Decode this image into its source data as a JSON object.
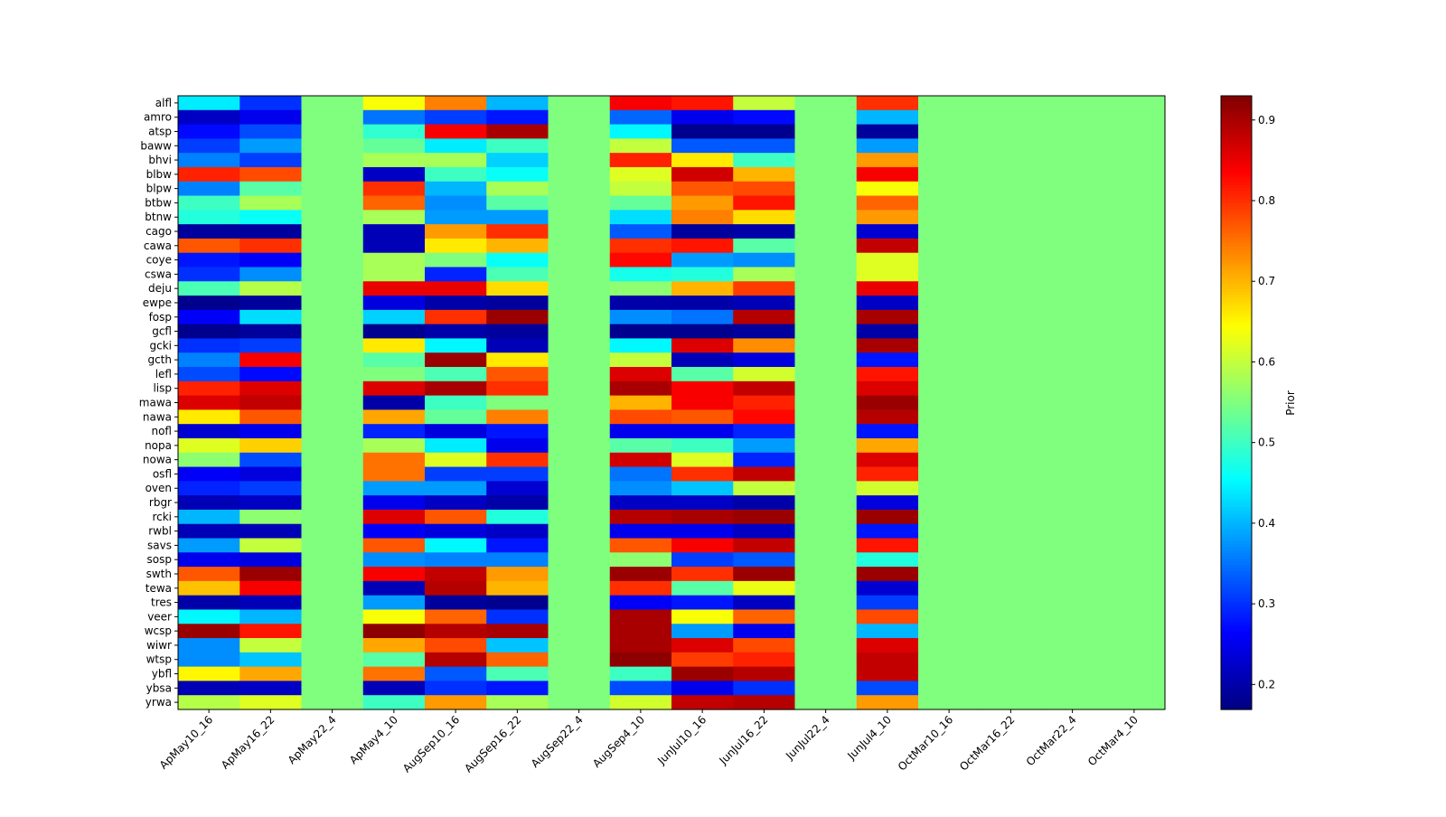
{
  "chart_data": {
    "type": "heatmap",
    "title": "",
    "xlabel": "",
    "ylabel": "",
    "colormap": "jet",
    "colorbar": {
      "label": "Prior",
      "range": [
        0.169,
        0.93
      ],
      "ticks": [
        "0.2",
        "0.3",
        "0.4",
        "0.5",
        "0.6",
        "0.7",
        "0.8",
        "0.9"
      ]
    },
    "columns": [
      "ApMay10_16",
      "ApMay16_22",
      "ApMay22_4",
      "ApMay4_10",
      "AugSep10_16",
      "AugSep16_22",
      "AugSep22_4",
      "AugSep4_10",
      "JunJul10_16",
      "JunJul16_22",
      "JunJul22_4",
      "JunJul4_10",
      "OctMar10_16",
      "OctMar16_22",
      "OctMar22_4",
      "OctMar4_10"
    ],
    "rows": [
      "alfl",
      "amro",
      "atsp",
      "baww",
      "bhvi",
      "blbw",
      "blpw",
      "btbw",
      "btnw",
      "cago",
      "cawa",
      "coye",
      "cswa",
      "deju",
      "ewpe",
      "fosp",
      "gcfl",
      "gcki",
      "gcth",
      "lefl",
      "lisp",
      "mawa",
      "nawa",
      "nofl",
      "nopa",
      "nowa",
      "osfl",
      "oven",
      "rbgr",
      "rcki",
      "rwbl",
      "savs",
      "sosp",
      "swth",
      "tewa",
      "tres",
      "veer",
      "wcsp",
      "wiwr",
      "wtsp",
      "ybfl",
      "ybsa",
      "yrwa"
    ],
    "constant_value": 0.55,
    "constant_columns": [
      "ApMay22_4",
      "AugSep22_4",
      "JunJul22_4",
      "OctMar10_16",
      "OctMar16_22",
      "OctMar22_4",
      "OctMar4_10"
    ],
    "varying_columns": [
      "ApMay10_16",
      "ApMay16_22",
      "ApMay4_10",
      "AugSep10_16",
      "AugSep16_22",
      "AugSep4_10",
      "JunJul10_16",
      "JunJul16_22",
      "JunJul4_10"
    ],
    "values": [
      [
        0.44,
        0.3,
        0.64,
        0.74,
        0.4,
        0.84,
        0.82,
        0.6,
        0.8
      ],
      [
        0.22,
        0.25,
        0.35,
        0.31,
        0.28,
        0.34,
        0.25,
        0.27,
        0.4
      ],
      [
        0.27,
        0.32,
        0.49,
        0.84,
        0.9,
        0.45,
        0.18,
        0.18,
        0.19
      ],
      [
        0.31,
        0.38,
        0.53,
        0.44,
        0.5,
        0.6,
        0.33,
        0.33,
        0.38
      ],
      [
        0.36,
        0.31,
        0.58,
        0.58,
        0.42,
        0.81,
        0.66,
        0.5,
        0.72
      ],
      [
        0.81,
        0.78,
        0.22,
        0.5,
        0.46,
        0.62,
        0.87,
        0.7,
        0.84
      ],
      [
        0.36,
        0.52,
        0.8,
        0.4,
        0.58,
        0.6,
        0.77,
        0.78,
        0.64
      ],
      [
        0.5,
        0.58,
        0.76,
        0.37,
        0.52,
        0.53,
        0.72,
        0.82,
        0.76
      ],
      [
        0.48,
        0.46,
        0.58,
        0.38,
        0.38,
        0.43,
        0.74,
        0.67,
        0.72
      ],
      [
        0.19,
        0.19,
        0.21,
        0.72,
        0.8,
        0.33,
        0.19,
        0.2,
        0.23
      ],
      [
        0.77,
        0.8,
        0.21,
        0.66,
        0.7,
        0.8,
        0.82,
        0.52,
        0.88
      ],
      [
        0.28,
        0.26,
        0.58,
        0.55,
        0.46,
        0.83,
        0.38,
        0.37,
        0.62
      ],
      [
        0.3,
        0.37,
        0.58,
        0.29,
        0.51,
        0.47,
        0.48,
        0.58,
        0.62
      ],
      [
        0.51,
        0.59,
        0.85,
        0.85,
        0.67,
        0.56,
        0.7,
        0.79,
        0.85
      ],
      [
        0.18,
        0.19,
        0.24,
        0.2,
        0.19,
        0.2,
        0.2,
        0.21,
        0.22
      ],
      [
        0.26,
        0.43,
        0.42,
        0.8,
        0.91,
        0.37,
        0.35,
        0.89,
        0.9
      ],
      [
        0.18,
        0.19,
        0.18,
        0.2,
        0.19,
        0.18,
        0.18,
        0.19,
        0.2
      ],
      [
        0.3,
        0.31,
        0.66,
        0.45,
        0.21,
        0.45,
        0.86,
        0.73,
        0.9
      ],
      [
        0.36,
        0.84,
        0.52,
        0.91,
        0.66,
        0.6,
        0.21,
        0.24,
        0.28
      ],
      [
        0.32,
        0.27,
        0.55,
        0.51,
        0.77,
        0.86,
        0.52,
        0.61,
        0.82
      ],
      [
        0.81,
        0.86,
        0.86,
        0.9,
        0.8,
        0.9,
        0.84,
        0.88,
        0.86
      ],
      [
        0.86,
        0.88,
        0.2,
        0.5,
        0.55,
        0.7,
        0.84,
        0.81,
        0.91
      ],
      [
        0.66,
        0.77,
        0.71,
        0.53,
        0.74,
        0.78,
        0.77,
        0.83,
        0.89
      ],
      [
        0.23,
        0.25,
        0.29,
        0.24,
        0.28,
        0.25,
        0.25,
        0.29,
        0.28
      ],
      [
        0.62,
        0.68,
        0.58,
        0.44,
        0.25,
        0.52,
        0.5,
        0.38,
        0.71
      ],
      [
        0.56,
        0.32,
        0.75,
        0.62,
        0.8,
        0.87,
        0.62,
        0.29,
        0.86
      ],
      [
        0.26,
        0.24,
        0.75,
        0.31,
        0.31,
        0.35,
        0.8,
        0.88,
        0.81
      ],
      [
        0.29,
        0.31,
        0.38,
        0.38,
        0.23,
        0.37,
        0.41,
        0.6,
        0.61
      ],
      [
        0.21,
        0.22,
        0.25,
        0.22,
        0.2,
        0.22,
        0.22,
        0.2,
        0.24
      ],
      [
        0.4,
        0.56,
        0.86,
        0.77,
        0.48,
        0.89,
        0.9,
        0.91,
        0.91
      ],
      [
        0.21,
        0.21,
        0.26,
        0.24,
        0.22,
        0.25,
        0.25,
        0.22,
        0.28
      ],
      [
        0.38,
        0.6,
        0.77,
        0.45,
        0.28,
        0.77,
        0.84,
        0.88,
        0.82
      ],
      [
        0.25,
        0.24,
        0.37,
        0.36,
        0.36,
        0.56,
        0.31,
        0.33,
        0.48
      ],
      [
        0.77,
        0.91,
        0.84,
        0.88,
        0.72,
        0.91,
        0.8,
        0.91,
        0.91
      ],
      [
        0.69,
        0.84,
        0.21,
        0.89,
        0.7,
        0.8,
        0.52,
        0.63,
        0.23
      ],
      [
        0.2,
        0.21,
        0.38,
        0.19,
        0.18,
        0.26,
        0.28,
        0.22,
        0.31
      ],
      [
        0.45,
        0.4,
        0.64,
        0.76,
        0.3,
        0.9,
        0.64,
        0.76,
        0.78
      ],
      [
        0.91,
        0.82,
        0.92,
        0.89,
        0.9,
        0.9,
        0.38,
        0.25,
        0.4
      ],
      [
        0.37,
        0.6,
        0.71,
        0.78,
        0.41,
        0.9,
        0.86,
        0.78,
        0.86
      ],
      [
        0.37,
        0.41,
        0.52,
        0.89,
        0.76,
        0.92,
        0.79,
        0.81,
        0.88
      ],
      [
        0.65,
        0.71,
        0.75,
        0.33,
        0.51,
        0.5,
        0.91,
        0.89,
        0.88
      ],
      [
        0.21,
        0.22,
        0.21,
        0.3,
        0.28,
        0.32,
        0.25,
        0.3,
        0.32
      ],
      [
        0.59,
        0.62,
        0.5,
        0.72,
        0.58,
        0.61,
        0.88,
        0.89,
        0.72
      ]
    ]
  }
}
